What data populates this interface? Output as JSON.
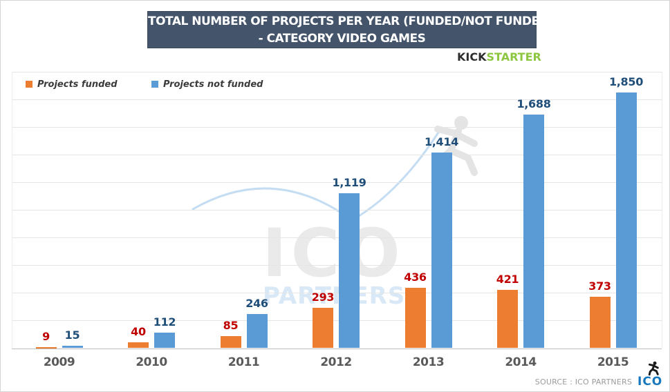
{
  "title": {
    "line1": "TOTAL NUMBER OF PROJECTS PER YEAR (FUNDED/NOT FUNDED)",
    "line2": "- CATEGORY VIDEO GAMES"
  },
  "branding": {
    "kick": "KICK",
    "starter": "STARTER"
  },
  "legend": [
    {
      "label": "Projects funded",
      "color": "#ED7D31"
    },
    {
      "label": "Projects not funded",
      "color": "#5B9BD5"
    }
  ],
  "watermark": {
    "line1": "ICO",
    "line2": "PARTNERS"
  },
  "footer": {
    "source": "SOURCE : ICO PARTNERS",
    "logo_text": "ICO"
  },
  "colors": {
    "banner_bg": "#44546A",
    "funded_bar": "#ED7D31",
    "not_funded_bar": "#5B9BD5",
    "funded_label": "#C00000",
    "not_funded_label": "#1F4E79",
    "year_label": "#595959",
    "gridline": "#E5E5E5",
    "kickstarter_green": "#8DC63F",
    "ico_blue": "#1878BE",
    "watermark_gray": "#EAEAEA",
    "watermark_blue": "#D8E8F6"
  },
  "chart_data": {
    "type": "bar",
    "title": "TOTAL NUMBER OF PROJECTS PER YEAR (FUNDED/NOT FUNDED) - CATEGORY VIDEO GAMES",
    "categories": [
      "2009",
      "2010",
      "2011",
      "2012",
      "2013",
      "2014",
      "2015"
    ],
    "series": [
      {
        "name": "Projects funded",
        "color": "#ED7D31",
        "label_color": "#C00000",
        "values": [
          9,
          40,
          85,
          293,
          436,
          421,
          373
        ],
        "labels": [
          "9",
          "40",
          "85",
          "293",
          "436",
          "421",
          "373"
        ]
      },
      {
        "name": "Projects not funded",
        "color": "#5B9BD5",
        "label_color": "#1F4E79",
        "values": [
          15,
          112,
          246,
          1119,
          1414,
          1688,
          1850
        ],
        "labels": [
          "15",
          "112",
          "246",
          "1,119",
          "1,414",
          "1,688",
          "1,850"
        ]
      }
    ],
    "xlabel": "",
    "ylabel": "",
    "ylim": [
      0,
      2000
    ],
    "grid_step": 200,
    "grid": "horizontal",
    "y_axis_labels_visible": false,
    "legend_position": "top-left",
    "data_labels_visible": true
  }
}
